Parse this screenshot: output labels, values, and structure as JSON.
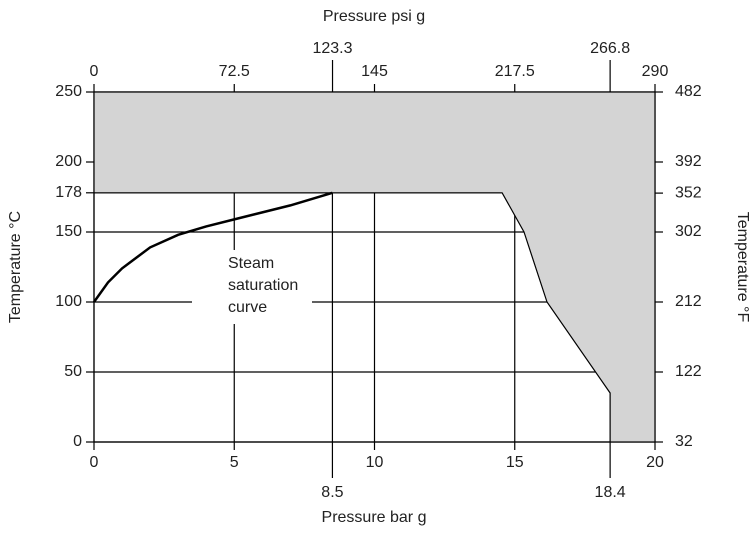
{
  "chart_data": {
    "type": "line",
    "xlabel": "Pressure bar g",
    "x2label": "Pressure psi g",
    "ylabel": "Temperature °C",
    "y2label": "Temperature °F",
    "xlim": [
      0,
      20
    ],
    "xticks": [
      0,
      5,
      8.5,
      10,
      15,
      18.4,
      20
    ],
    "x2lim": [
      0,
      290
    ],
    "x2ticks": [
      0,
      72.5,
      123.3,
      145,
      217.5,
      266.8,
      290
    ],
    "ylim": [
      0,
      250
    ],
    "yticks": [
      0,
      50,
      100,
      150,
      178,
      200,
      250
    ],
    "y2lim": [
      32,
      482
    ],
    "y2ticks": [
      32,
      122,
      212,
      302,
      352,
      392,
      482
    ],
    "grid": true,
    "region": {
      "color": "#d4d4d4",
      "x": [
        0,
        14.55,
        15.33,
        16.15,
        18.4,
        18.4
      ],
      "values": [
        178,
        178,
        150,
        100,
        35,
        0
      ]
    },
    "series": [
      {
        "color": "#000000",
        "x": [
          0,
          0.5,
          1,
          2,
          3,
          4,
          5,
          6,
          7,
          8.5
        ],
        "values": [
          100,
          114,
          124,
          139,
          148,
          154,
          159,
          164,
          169,
          178
        ]
      }
    ],
    "annotation": [
      "Steam",
      "saturation",
      "curve"
    ]
  }
}
